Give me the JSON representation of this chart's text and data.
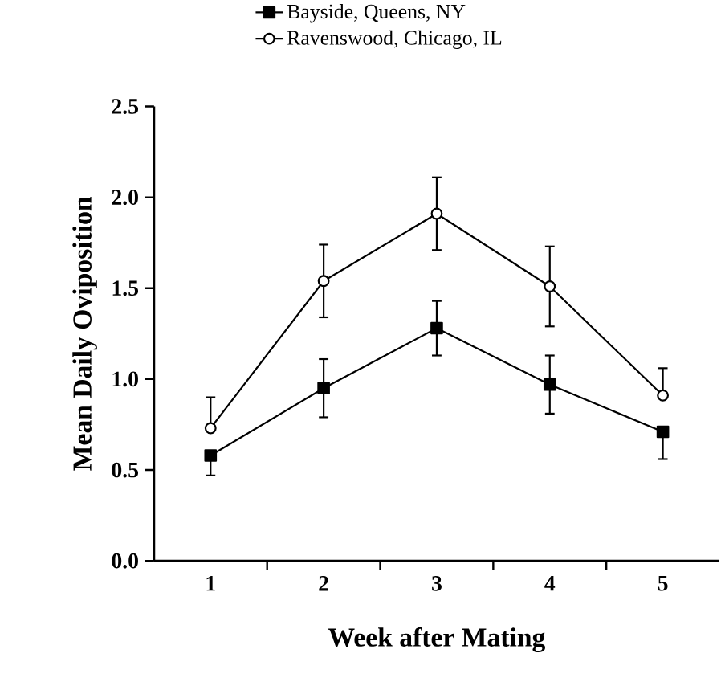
{
  "chart_data": {
    "type": "line",
    "xlabel": "Week after Mating",
    "ylabel": "Mean Daily Oviposition",
    "x": [
      1,
      2,
      3,
      4,
      5
    ],
    "series": [
      {
        "name": "Bayside, Queens, NY",
        "color": "#000000",
        "marker": "square",
        "values": [
          0.58,
          0.95,
          1.28,
          0.97,
          0.71
        ],
        "errors": [
          [
            0.47,
            0.58
          ],
          0.16,
          0.15,
          0.16,
          [
            0.56,
            0.71
          ]
        ]
      },
      {
        "name": "Ravenswood, Chicago, IL",
        "color": "#000000",
        "marker": "circle",
        "values": [
          0.73,
          1.54,
          1.91,
          1.51,
          0.91
        ],
        "errors": [
          [
            0.73,
            0.9
          ],
          0.2,
          0.2,
          0.22,
          [
            0.91,
            1.06
          ]
        ]
      }
    ],
    "xlim": [
      0.5,
      5.5
    ],
    "xticks": [
      1,
      2,
      3,
      4,
      5,
      {
        "value": 1.5,
        "label": null
      },
      {
        "value": 2.5,
        "label": null
      },
      {
        "value": 3.5,
        "label": null
      },
      {
        "value": 4.5,
        "label": null
      }
    ],
    "ylim": [
      0,
      2.5
    ],
    "yticks": [
      {
        "value": 0,
        "label": "0.0"
      },
      {
        "value": 0.5,
        "label": "0.5"
      },
      {
        "value": 1,
        "label": "1.0"
      },
      {
        "value": 1.5,
        "label": "1.5"
      },
      {
        "value": 2,
        "label": "2.0"
      },
      {
        "value": 2.5,
        "label": "2.5"
      }
    ],
    "legend": "top",
    "grid": false,
    "line_style": "solid"
  }
}
